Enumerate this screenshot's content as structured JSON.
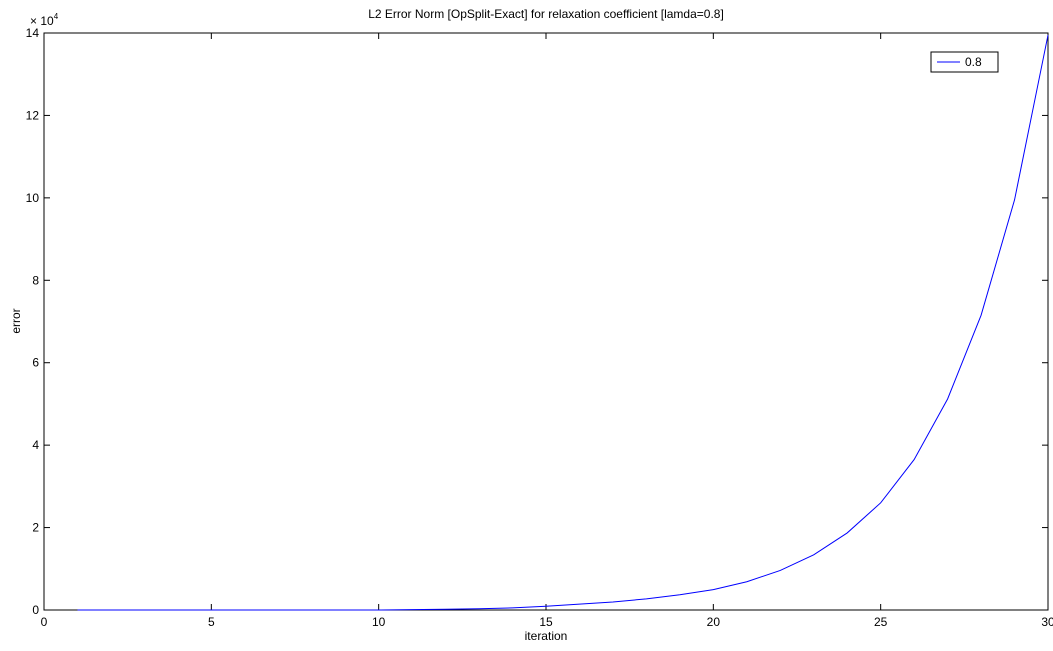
{
  "chart_data": {
    "type": "line",
    "title": "L2 Error Norm [OpSplit-Exact] for relaxation coefficient [lamda=0.8]",
    "xlabel": "iteration",
    "ylabel": "error",
    "y_multiplier": {
      "base": "× 10",
      "exponent": "4"
    },
    "xlim": [
      0,
      30
    ],
    "ylim": [
      0,
      14
    ],
    "x_ticks": [
      0,
      5,
      10,
      15,
      20,
      25,
      30
    ],
    "y_ticks": [
      0,
      2,
      4,
      6,
      8,
      10,
      12,
      14
    ],
    "grid": false,
    "legend": {
      "position": "top-right",
      "entries": [
        "0.8"
      ]
    },
    "series": [
      {
        "name": "0.8",
        "color": "#0000ff",
        "x": [
          1,
          2,
          3,
          4,
          5,
          6,
          7,
          8,
          9,
          10,
          11,
          12,
          13,
          14,
          15,
          16,
          17,
          18,
          19,
          20,
          21,
          22,
          23,
          24,
          25,
          26,
          27,
          28,
          29,
          30
        ],
        "y": [
          3e-06,
          4.4e-06,
          6.1e-06,
          8.6e-06,
          1.2e-05,
          1.69e-05,
          2.36e-05,
          3.3e-05,
          4.6e-05,
          6.5e-05,
          0.009,
          0.017,
          0.0294,
          0.052,
          0.092,
          0.142,
          0.195,
          0.27,
          0.37,
          0.495,
          0.686,
          0.96,
          1.34,
          1.87,
          2.6,
          3.65,
          5.12,
          7.15,
          9.95,
          13.95
        ]
      }
    ]
  }
}
